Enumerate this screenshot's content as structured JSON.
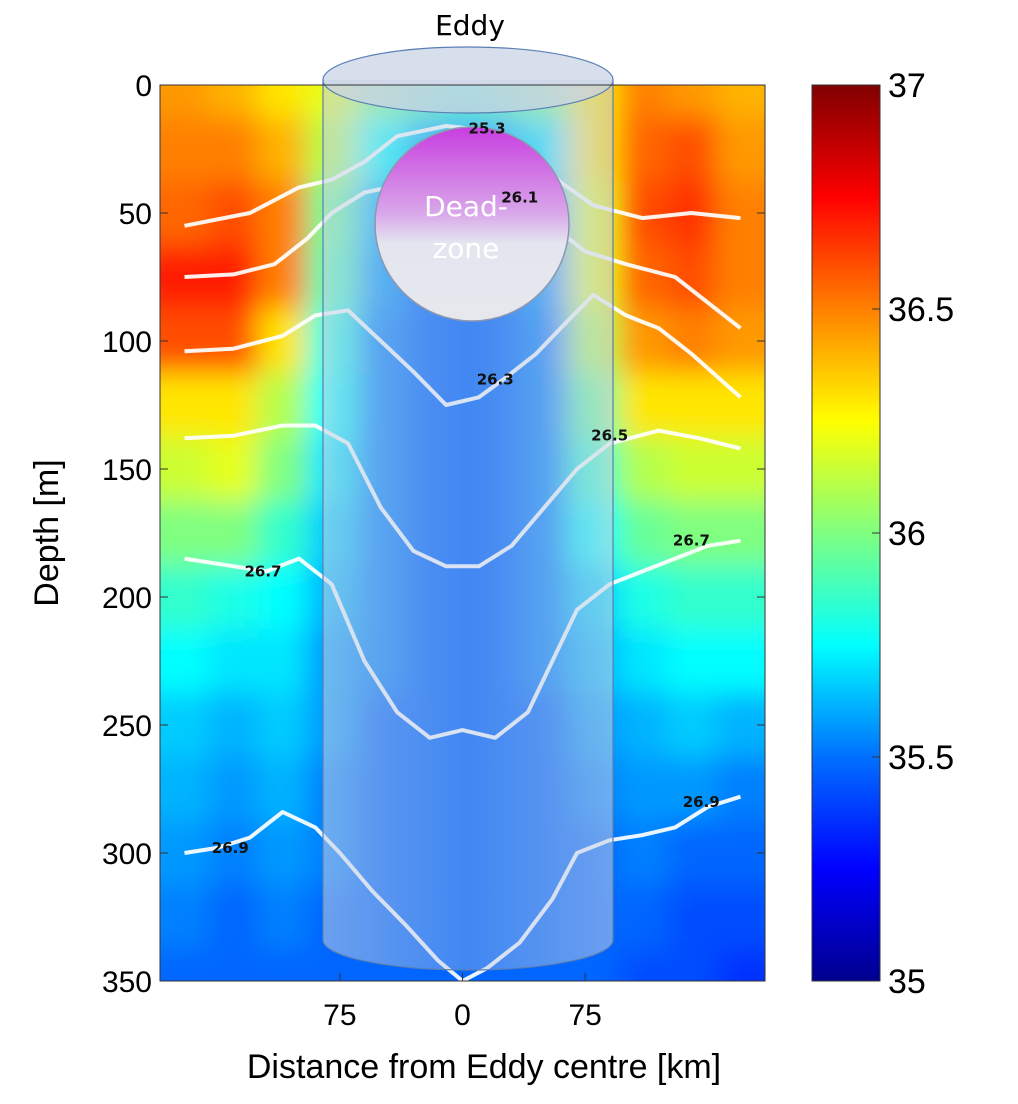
{
  "chart_data": {
    "type": "heatmap",
    "title": "",
    "xlabel": "Distance from Eddy centre [km]",
    "ylabel": "Depth [m]",
    "ylim": [
      0,
      350
    ],
    "y_inverted": true,
    "x_ticks": [
      {
        "value": -75,
        "label": "75"
      },
      {
        "value": 0,
        "label": "0"
      },
      {
        "value": 75,
        "label": "75"
      }
    ],
    "y_ticks": [
      0,
      50,
      100,
      150,
      200,
      250,
      300,
      350
    ],
    "colorbar": {
      "min": 35,
      "max": 37,
      "ticks": [
        35,
        35.5,
        36,
        36.5,
        37
      ],
      "tick_labels": [
        "35",
        "35.5",
        "36",
        "36.5",
        "37"
      ]
    },
    "salinity_field": {
      "description_rows_depth_m": [
        0,
        25,
        50,
        75,
        100,
        125,
        150,
        175,
        200,
        225,
        250,
        275,
        300,
        325,
        350
      ],
      "columns_km": [
        -170,
        -140,
        -110,
        -80,
        -50,
        -20,
        0,
        20,
        50,
        80,
        110,
        140,
        170
      ],
      "values": [
        [
          36.45,
          36.4,
          36.3,
          36.2,
          36.0,
          35.9,
          35.85,
          35.9,
          36.0,
          36.3,
          36.5,
          36.45,
          36.4
        ],
        [
          36.5,
          36.5,
          36.4,
          36.1,
          35.75,
          35.6,
          35.6,
          35.6,
          35.7,
          36.3,
          36.55,
          36.6,
          36.45
        ],
        [
          36.55,
          36.6,
          36.5,
          35.95,
          35.6,
          35.5,
          35.5,
          35.5,
          35.6,
          36.2,
          36.6,
          36.65,
          36.5
        ],
        [
          36.7,
          36.7,
          36.5,
          35.9,
          35.55,
          35.45,
          35.45,
          35.45,
          35.55,
          36.2,
          36.55,
          36.6,
          36.5
        ],
        [
          36.6,
          36.6,
          36.3,
          35.8,
          35.5,
          35.45,
          35.45,
          35.45,
          35.5,
          36.1,
          36.45,
          36.5,
          36.45
        ],
        [
          36.3,
          36.3,
          36.1,
          35.75,
          35.5,
          35.45,
          35.45,
          35.45,
          35.5,
          35.95,
          36.3,
          36.3,
          36.3
        ],
        [
          36.15,
          36.2,
          36.0,
          35.7,
          35.5,
          35.45,
          35.45,
          35.45,
          35.5,
          35.85,
          36.1,
          36.15,
          36.15
        ],
        [
          36.0,
          36.0,
          35.85,
          35.65,
          35.5,
          35.45,
          35.45,
          35.45,
          35.5,
          35.75,
          35.95,
          36.0,
          36.0
        ],
        [
          35.85,
          35.8,
          35.75,
          35.6,
          35.5,
          35.45,
          35.45,
          35.45,
          35.5,
          35.65,
          35.8,
          35.85,
          35.85
        ],
        [
          35.75,
          35.7,
          35.7,
          35.55,
          35.5,
          35.45,
          35.45,
          35.45,
          35.5,
          35.6,
          35.7,
          35.75,
          35.75
        ],
        [
          35.65,
          35.6,
          35.65,
          35.55,
          35.45,
          35.45,
          35.45,
          35.45,
          35.45,
          35.55,
          35.6,
          35.65,
          35.6
        ],
        [
          35.6,
          35.55,
          35.6,
          35.5,
          35.45,
          35.45,
          35.45,
          35.45,
          35.45,
          35.5,
          35.55,
          35.55,
          35.5
        ],
        [
          35.55,
          35.5,
          35.55,
          35.5,
          35.45,
          35.45,
          35.45,
          35.45,
          35.45,
          35.45,
          35.5,
          35.45,
          35.45
        ],
        [
          35.5,
          35.45,
          35.5,
          35.45,
          35.45,
          35.45,
          35.45,
          35.45,
          35.45,
          35.45,
          35.45,
          35.4,
          35.4
        ],
        [
          35.45,
          35.45,
          35.45,
          35.45,
          35.45,
          35.45,
          35.45,
          35.45,
          35.45,
          35.45,
          35.4,
          35.4,
          35.35
        ]
      ]
    },
    "density_contours": [
      {
        "label": "25.3",
        "label_at": [
          15,
          17
        ],
        "points": [
          [
            -170,
            55
          ],
          [
            -130,
            50
          ],
          [
            -100,
            40
          ],
          [
            -80,
            37
          ],
          [
            -60,
            30
          ],
          [
            -40,
            20
          ],
          [
            -10,
            16
          ],
          [
            20,
            18
          ],
          [
            45,
            28
          ],
          [
            60,
            38
          ],
          [
            80,
            47
          ],
          [
            110,
            52
          ],
          [
            140,
            50
          ],
          [
            170,
            52
          ]
        ]
      },
      {
        "label": "26.1",
        "label_at": [
          35,
          44
        ],
        "points": [
          [
            -170,
            75
          ],
          [
            -140,
            74
          ],
          [
            -115,
            70
          ],
          [
            -95,
            60
          ],
          [
            -80,
            50
          ],
          [
            -60,
            42
          ],
          [
            -30,
            38
          ],
          [
            0,
            40
          ],
          [
            30,
            42
          ],
          [
            55,
            55
          ],
          [
            75,
            65
          ],
          [
            100,
            70
          ],
          [
            130,
            75
          ],
          [
            150,
            85
          ],
          [
            170,
            95
          ]
        ]
      },
      {
        "label": "26.3",
        "label_at": [
          20,
          115
        ],
        "points": [
          [
            -170,
            104
          ],
          [
            -140,
            103
          ],
          [
            -110,
            98
          ],
          [
            -90,
            90
          ],
          [
            -70,
            88
          ],
          [
            -50,
            100
          ],
          [
            -30,
            112
          ],
          [
            -10,
            125
          ],
          [
            10,
            122
          ],
          [
            25,
            115
          ],
          [
            45,
            105
          ],
          [
            60,
            95
          ],
          [
            80,
            82
          ],
          [
            100,
            90
          ],
          [
            120,
            95
          ],
          [
            140,
            105
          ],
          [
            170,
            122
          ]
        ]
      },
      {
        "label": "26.5",
        "label_at": [
          90,
          137
        ],
        "points": [
          [
            -170,
            138
          ],
          [
            -140,
            137
          ],
          [
            -110,
            133
          ],
          [
            -90,
            133
          ],
          [
            -70,
            140
          ],
          [
            -50,
            165
          ],
          [
            -30,
            182
          ],
          [
            -10,
            188
          ],
          [
            10,
            188
          ],
          [
            30,
            180
          ],
          [
            50,
            165
          ],
          [
            70,
            150
          ],
          [
            90,
            140
          ],
          [
            120,
            135
          ],
          [
            145,
            138
          ],
          [
            170,
            142
          ]
        ]
      },
      {
        "label": "26.7",
        "label_at": [
          -122,
          190
        ],
        "points": [
          [
            -170,
            185
          ],
          [
            -150,
            187
          ],
          [
            -120,
            190
          ],
          [
            -100,
            185
          ],
          [
            -80,
            195
          ],
          [
            -60,
            225
          ],
          [
            -40,
            245
          ],
          [
            -20,
            255
          ],
          [
            0,
            252
          ],
          [
            20,
            255
          ],
          [
            40,
            245
          ],
          [
            55,
            225
          ],
          [
            70,
            205
          ],
          [
            90,
            195
          ],
          [
            110,
            190
          ],
          [
            130,
            185
          ],
          [
            150,
            180
          ],
          [
            170,
            178
          ]
        ]
      },
      {
        "label": "26.9",
        "label_at": [
          -142,
          298
        ],
        "points": [
          [
            -170,
            300
          ],
          [
            -150,
            298
          ],
          [
            -130,
            294
          ],
          [
            -110,
            284
          ],
          [
            -90,
            290
          ],
          [
            -75,
            300
          ],
          [
            -55,
            315
          ],
          [
            -35,
            328
          ],
          [
            -15,
            342
          ],
          [
            0,
            350
          ],
          [
            15,
            345
          ],
          [
            35,
            335
          ],
          [
            55,
            318
          ],
          [
            70,
            300
          ],
          [
            90,
            295
          ],
          [
            110,
            293
          ],
          [
            130,
            290
          ],
          [
            150,
            282
          ],
          [
            170,
            278
          ]
        ]
      }
    ],
    "secondary_contour_labels": [
      {
        "label": "26.7",
        "label_at": [
          140,
          178
        ]
      },
      {
        "label": "26.9",
        "label_at": [
          146,
          280
        ]
      }
    ],
    "annotations": {
      "eddy_label": "Eddy",
      "deadzone_label_line1": "Dead-",
      "deadzone_label_line2": "zone"
    }
  },
  "colors": {
    "colormap": [
      "#00008f",
      "#0000ff",
      "#0080ff",
      "#00ffff",
      "#80ff80",
      "#ffff00",
      "#ff8000",
      "#ff0000",
      "#800000"
    ],
    "eddy_fill": "#b8c6dc",
    "eddy_stroke": "#5b7fb4",
    "deadzone_top": "#c83ee0",
    "deadzone_bottom": "#e6e8ee",
    "contour_line": "#ffffff"
  }
}
